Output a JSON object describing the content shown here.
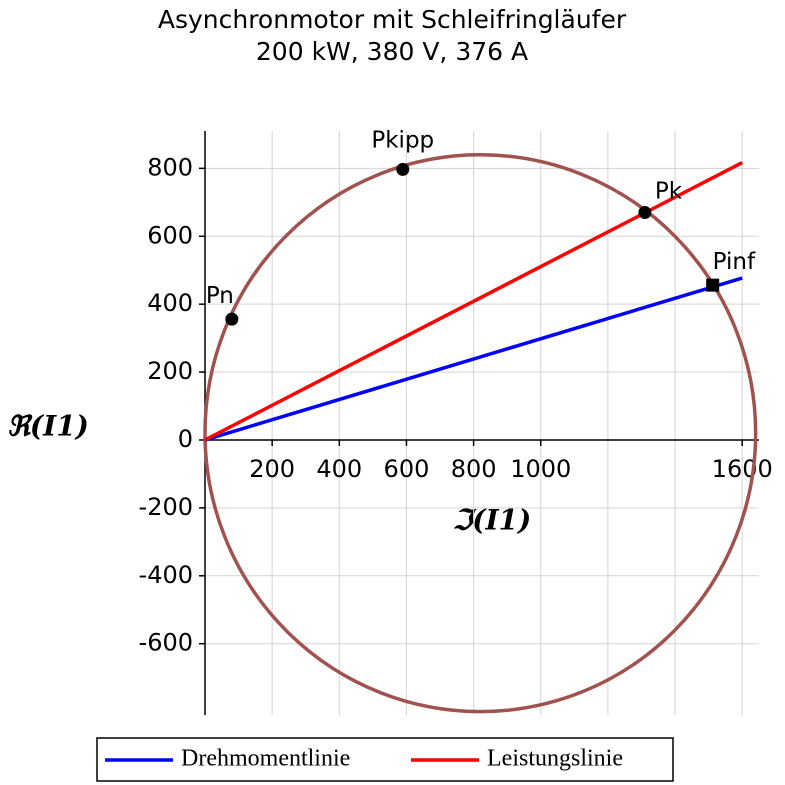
{
  "chart_data": {
    "type": "line",
    "title": "Asynchronmotor mit Schleifringläufer",
    "subtitle": "200 kW,  380 V,  376 A",
    "x_label": "ℑ(I1)",
    "y_label": "ℜ(I1)",
    "xlim": [
      0,
      1650
    ],
    "ylim": [
      -810,
      910
    ],
    "xticks": [
      200,
      400,
      600,
      800,
      1000,
      1600
    ],
    "xgrid": [
      200,
      400,
      600,
      800,
      1000,
      1200,
      1400,
      1600
    ],
    "yticks": [
      -600,
      -400,
      -200,
      0,
      200,
      400,
      600,
      800
    ],
    "grid": true,
    "series": [
      {
        "name": "Drehmomentlinie",
        "color": "#0000ff",
        "x": [
          0,
          1600
        ],
        "values": [
          0,
          477
        ]
      },
      {
        "name": "Leistungslinie",
        "color": "#ff0000",
        "x": [
          0,
          1600
        ],
        "values": [
          0,
          817
        ]
      }
    ],
    "circle": {
      "center": [
        820,
        20
      ],
      "radius": 820,
      "color": "#a0524f"
    },
    "points": [
      {
        "name": "Pn",
        "x": 80,
        "y": 356,
        "marker": "circle"
      },
      {
        "name": "Pkipp",
        "x": 589,
        "y": 797,
        "marker": "circle"
      },
      {
        "name": "Pk",
        "x": 1310,
        "y": 670,
        "marker": "circle"
      },
      {
        "name": "Pinf",
        "x": 1512,
        "y": 456,
        "marker": "square"
      }
    ]
  }
}
